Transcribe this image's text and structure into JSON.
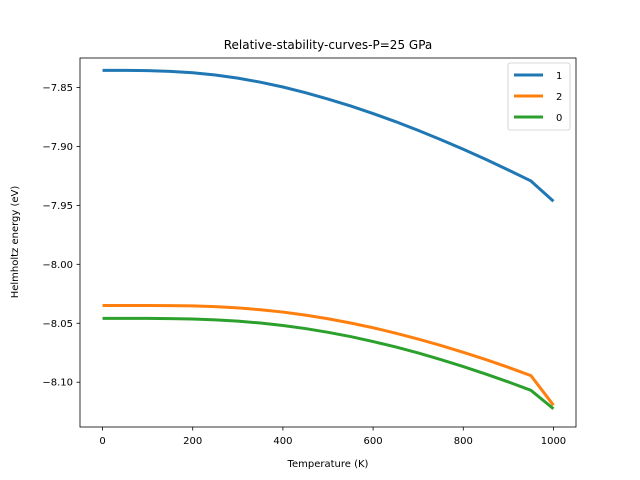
{
  "chart_data": {
    "type": "line",
    "title": "Relative-stability-curves-P=25 GPa",
    "xlabel": "Temperature (K)",
    "ylabel": "Helmholtz energy (eV)",
    "xlim": [
      -50,
      1050
    ],
    "ylim": [
      -8.138,
      -7.825
    ],
    "x_ticks": [
      0,
      200,
      400,
      600,
      800,
      1000
    ],
    "x_tick_labels": [
      "0",
      "200",
      "400",
      "600",
      "800",
      "1000"
    ],
    "y_ticks": [
      -7.85,
      -7.9,
      -7.95,
      -8.0,
      -8.05,
      -8.1
    ],
    "y_tick_labels": [
      "−7.85",
      "−7.90",
      "−7.95",
      "−8.00",
      "−8.05",
      "−8.10"
    ],
    "grid": false,
    "legend_position": "top-right",
    "x": [
      0,
      50,
      100,
      150,
      200,
      250,
      300,
      350,
      400,
      450,
      500,
      550,
      600,
      650,
      700,
      750,
      800,
      850,
      900,
      950,
      1000
    ],
    "series": [
      {
        "name": "1",
        "color": "#1f77b4",
        "values": [
          -7.8355,
          -7.8355,
          -7.8357,
          -7.8363,
          -7.8375,
          -7.8394,
          -7.8421,
          -7.8455,
          -7.8496,
          -7.8544,
          -7.8598,
          -7.8657,
          -7.8721,
          -7.879,
          -7.8864,
          -7.8942,
          -7.9024,
          -7.911,
          -7.92,
          -7.9293,
          -7.9465
        ]
      },
      {
        "name": "2",
        "color": "#ff7f0e",
        "values": [
          -8.0349,
          -8.0349,
          -8.0349,
          -8.035,
          -8.0353,
          -8.0359,
          -8.037,
          -8.0385,
          -8.0405,
          -8.0431,
          -8.0462,
          -8.0498,
          -8.0538,
          -8.0584,
          -8.0634,
          -8.0688,
          -8.0746,
          -8.0808,
          -8.0874,
          -8.0944,
          -8.1195
        ]
      },
      {
        "name": "0",
        "color": "#2ca02c",
        "values": [
          -8.0459,
          -8.0459,
          -8.0459,
          -8.0461,
          -8.0464,
          -8.0471,
          -8.0482,
          -8.0498,
          -8.0519,
          -8.0545,
          -8.0577,
          -8.0613,
          -8.0655,
          -8.0701,
          -8.0752,
          -8.0808,
          -8.0867,
          -8.0931,
          -8.0998,
          -8.1069,
          -8.1225
        ]
      }
    ]
  }
}
